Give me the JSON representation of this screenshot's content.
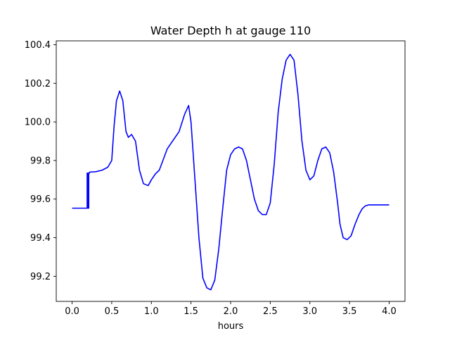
{
  "chart_data": {
    "type": "line",
    "title": "Water Depth h at gauge 110",
    "xlabel": "hours",
    "ylabel": "",
    "xlim": [
      -0.2,
      4.2
    ],
    "ylim": [
      99.07,
      100.42
    ],
    "xticks": [
      0.0,
      0.5,
      1.0,
      1.5,
      2.0,
      2.5,
      3.0,
      3.5,
      4.0
    ],
    "xtick_labels": [
      "0.0",
      "0.5",
      "1.0",
      "1.5",
      "2.0",
      "2.5",
      "3.0",
      "3.5",
      "4.0"
    ],
    "yticks": [
      99.2,
      99.4,
      99.6,
      99.8,
      100.0,
      100.2,
      100.4
    ],
    "ytick_labels": [
      "99.2",
      "99.4",
      "99.6",
      "99.8",
      "100.0",
      "100.2",
      "100.4"
    ],
    "grid": false,
    "legend": "none",
    "series": [
      {
        "color": "#0000ff",
        "x": [
          0.0,
          0.19,
          0.19,
          0.2,
          0.2,
          0.21,
          0.21,
          0.22,
          0.22,
          0.3,
          0.38,
          0.45,
          0.5,
          0.53,
          0.56,
          0.6,
          0.64,
          0.68,
          0.71,
          0.75,
          0.8,
          0.85,
          0.9,
          0.96,
          1.0,
          1.05,
          1.1,
          1.2,
          1.35,
          1.42,
          1.47,
          1.5,
          1.55,
          1.6,
          1.65,
          1.7,
          1.75,
          1.8,
          1.85,
          1.9,
          1.95,
          2.0,
          2.05,
          2.1,
          2.15,
          2.2,
          2.25,
          2.3,
          2.35,
          2.4,
          2.45,
          2.5,
          2.55,
          2.6,
          2.65,
          2.7,
          2.75,
          2.8,
          2.85,
          2.9,
          2.95,
          3.0,
          3.05,
          3.1,
          3.15,
          3.2,
          3.25,
          3.3,
          3.35,
          3.38,
          3.42,
          3.47,
          3.52,
          3.57,
          3.62,
          3.66,
          3.7,
          3.74,
          3.78,
          3.82,
          3.86,
          3.9,
          3.95,
          4.0
        ],
        "y": [
          99.553,
          99.553,
          99.735,
          99.735,
          99.553,
          99.553,
          99.735,
          99.735,
          99.74,
          99.742,
          99.75,
          99.765,
          99.8,
          99.98,
          100.11,
          100.16,
          100.11,
          99.95,
          99.92,
          99.935,
          99.9,
          99.75,
          99.68,
          99.67,
          99.7,
          99.73,
          99.75,
          99.86,
          99.95,
          100.04,
          100.085,
          100.0,
          99.7,
          99.4,
          99.19,
          99.14,
          99.13,
          99.18,
          99.34,
          99.55,
          99.75,
          99.83,
          99.86,
          99.87,
          99.86,
          99.8,
          99.7,
          99.6,
          99.54,
          99.52,
          99.52,
          99.58,
          99.78,
          100.05,
          100.22,
          100.32,
          100.35,
          100.32,
          100.14,
          99.9,
          99.75,
          99.7,
          99.72,
          99.8,
          99.86,
          99.87,
          99.84,
          99.74,
          99.58,
          99.47,
          99.4,
          99.39,
          99.41,
          99.47,
          99.52,
          99.55,
          99.565,
          99.57,
          99.57,
          99.57,
          99.57,
          99.57,
          99.57,
          99.57
        ]
      }
    ]
  }
}
